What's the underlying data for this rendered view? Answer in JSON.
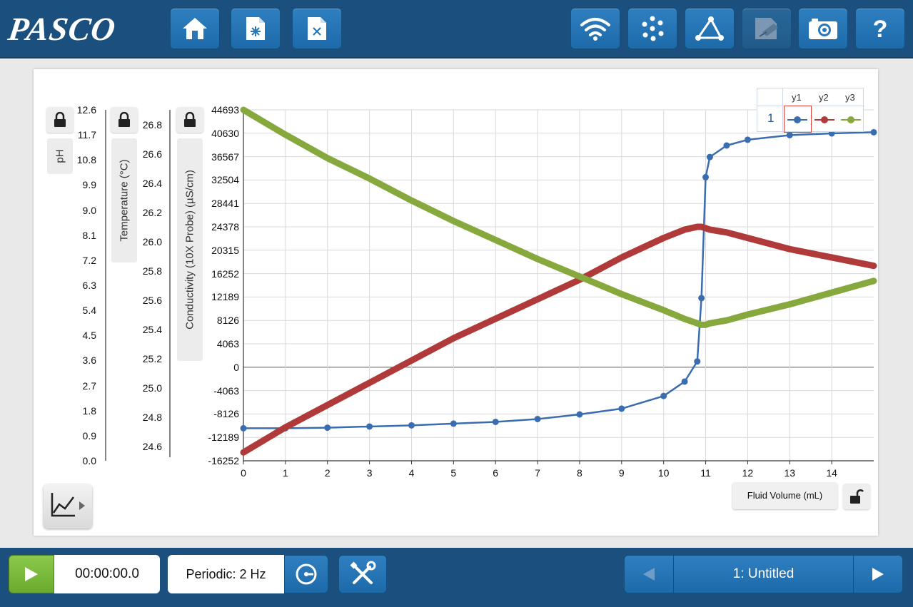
{
  "app": {
    "logo": "PASCO"
  },
  "toolbar": {
    "left": [
      {
        "name": "home-button",
        "icon": "home-icon"
      },
      {
        "name": "new-file-button",
        "icon": "new-file-icon"
      },
      {
        "name": "close-file-button",
        "icon": "close-file-icon"
      }
    ],
    "right": [
      {
        "name": "hardware-setup-button",
        "icon": "wireless-icon"
      },
      {
        "name": "data-summary-button",
        "icon": "data-points-icon"
      },
      {
        "name": "calculator-button",
        "icon": "triangle-network-icon"
      },
      {
        "name": "journal-button",
        "icon": "journal-icon"
      },
      {
        "name": "snapshot-button",
        "icon": "camera-icon"
      },
      {
        "name": "help-button",
        "icon": "help-icon",
        "label": "?"
      }
    ]
  },
  "axes": {
    "ph": {
      "label": "pH",
      "ticks": [
        "12.6",
        "11.7",
        "10.8",
        "9.9",
        "9.0",
        "8.1",
        "7.2",
        "6.3",
        "5.4",
        "4.5",
        "3.6",
        "2.7",
        "1.8",
        "0.9",
        "0.0"
      ],
      "min": 0,
      "max": 12.6
    },
    "temperature": {
      "label": "Temperature (°C)",
      "ticks": [
        "26.8",
        "26.6",
        "26.4",
        "26.2",
        "26.0",
        "25.8",
        "25.6",
        "25.4",
        "25.2",
        "25.0",
        "24.8",
        "24.6"
      ],
      "min": 24.5,
      "max": 26.9
    },
    "conductivity": {
      "label": "Conductivity (10X Probe) (µS/cm)",
      "ticks": [
        "44693",
        "40630",
        "36567",
        "32504",
        "28441",
        "24378",
        "20315",
        "16252",
        "12189",
        "8126",
        "4063",
        "0",
        "-4063",
        "-8126",
        "-12189",
        "-16252"
      ],
      "min": -16252,
      "max": 44693
    },
    "x": {
      "label": "Fluid Volume (mL)",
      "ticks": [
        "0",
        "1",
        "2",
        "3",
        "4",
        "5",
        "6",
        "7",
        "8",
        "9",
        "10",
        "11",
        "12",
        "13",
        "14"
      ],
      "min": 0,
      "max": 15
    }
  },
  "legend": {
    "run": "1",
    "series": [
      "y1",
      "y2",
      "y3"
    ]
  },
  "chart_data": {
    "type": "line",
    "xlabel": "Fluid Volume (mL)",
    "x": [
      0,
      1,
      2,
      3,
      4,
      5,
      6,
      7,
      8,
      9,
      10,
      10.5,
      10.8,
      10.9,
      11.0,
      11.1,
      11.5,
      12,
      13,
      14,
      15
    ],
    "series": [
      {
        "name": "y1",
        "axis": "Conductivity (10X Probe) (µS/cm)",
        "color": "#3a6db0",
        "values": [
          -10600,
          -10600,
          -10500,
          -10300,
          -10100,
          -9800,
          -9500,
          -9000,
          -8200,
          -7200,
          -5000,
          -2500,
          1000,
          12000,
          33000,
          36500,
          38500,
          39500,
          40300,
          40600,
          40800
        ]
      },
      {
        "name": "y2",
        "axis": "pH",
        "color": "#b03a3a",
        "values": [
          0.3,
          1.2,
          2.0,
          2.8,
          3.6,
          4.4,
          5.1,
          5.8,
          6.5,
          7.3,
          8.0,
          8.3,
          8.4,
          8.4,
          8.35,
          8.3,
          8.2,
          8.0,
          7.6,
          7.3,
          7.0
        ]
      },
      {
        "name": "y3",
        "axis": "Temperature (°C)",
        "color": "#86a83d",
        "values": [
          26.9,
          26.73,
          26.57,
          26.43,
          26.28,
          26.14,
          26.01,
          25.88,
          25.76,
          25.64,
          25.53,
          25.47,
          25.44,
          25.43,
          25.43,
          25.44,
          25.46,
          25.5,
          25.57,
          25.65,
          25.73
        ]
      }
    ],
    "grid": true,
    "legend": "top-right"
  },
  "controls": {
    "timer": "00:00:00.0",
    "sampling": "Periodic: 2 Hz",
    "page": "1: Untitled"
  }
}
